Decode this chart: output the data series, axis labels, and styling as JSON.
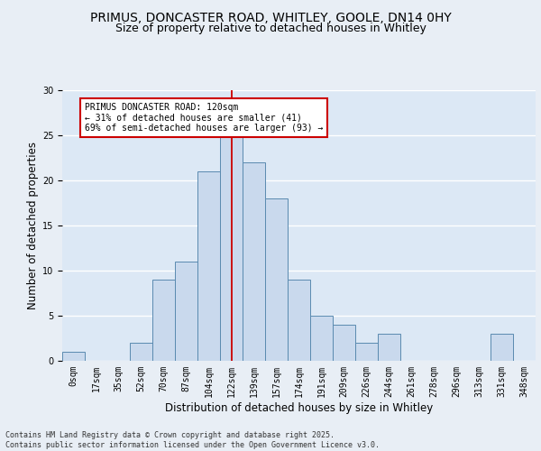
{
  "title1": "PRIMUS, DONCASTER ROAD, WHITLEY, GOOLE, DN14 0HY",
  "title2": "Size of property relative to detached houses in Whitley",
  "xlabel": "Distribution of detached houses by size in Whitley",
  "ylabel": "Number of detached properties",
  "bar_labels": [
    "0sqm",
    "17sqm",
    "35sqm",
    "52sqm",
    "70sqm",
    "87sqm",
    "104sqm",
    "122sqm",
    "139sqm",
    "157sqm",
    "174sqm",
    "191sqm",
    "209sqm",
    "226sqm",
    "244sqm",
    "261sqm",
    "278sqm",
    "296sqm",
    "313sqm",
    "331sqm",
    "348sqm"
  ],
  "bar_values": [
    1,
    0,
    0,
    2,
    9,
    11,
    21,
    25,
    22,
    18,
    9,
    5,
    4,
    2,
    3,
    0,
    0,
    0,
    0,
    3,
    0
  ],
  "bar_color": "#c9d9ed",
  "bar_edge_color": "#5a8ab0",
  "grid_color": "#ffffff",
  "bg_color": "#dce8f5",
  "fig_bg_color": "#e8eef5",
  "vline_x": 7,
  "vline_color": "#cc0000",
  "annotation_text": "PRIMUS DONCASTER ROAD: 120sqm\n← 31% of detached houses are smaller (41)\n69% of semi-detached houses are larger (93) →",
  "annotation_box_color": "#cc0000",
  "ylim": [
    0,
    30
  ],
  "yticks": [
    0,
    5,
    10,
    15,
    20,
    25,
    30
  ],
  "footer": "Contains HM Land Registry data © Crown copyright and database right 2025.\nContains public sector information licensed under the Open Government Licence v3.0.",
  "title_fontsize": 10,
  "subtitle_fontsize": 9,
  "axis_fontsize": 8.5,
  "tick_fontsize": 7,
  "ann_fontsize": 7
}
